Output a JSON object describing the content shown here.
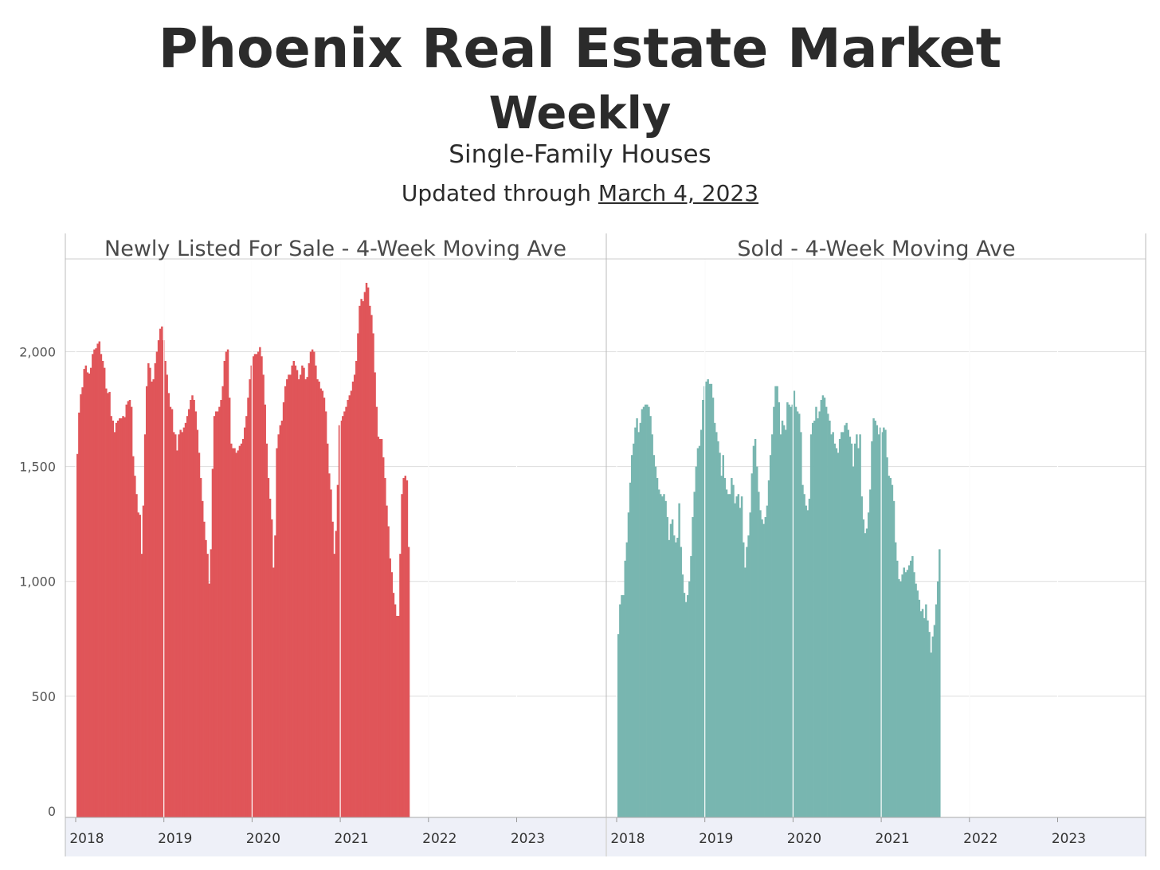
{
  "header": {
    "title": "Phoenix Real Estate Market",
    "subtitle": "Weekly",
    "category": "Single-Family Houses",
    "updated_prefix": "Updated through ",
    "updated_date": "March 4, 2023"
  },
  "colors": {
    "listed": "#e05559",
    "sold": "#78b6b0",
    "grid": "#dddddd",
    "axis_band": "#eef0f8"
  },
  "chart_data": [
    {
      "type": "bar",
      "title": "Newly Listed For Sale - 4-Week Moving Ave",
      "x_start": "2017-12-30",
      "x_step_weeks": 1,
      "xtick_labels": [
        "2018",
        "2019",
        "2020",
        "2021",
        "2022",
        "2023"
      ],
      "ytick_labels": [
        "0",
        "500",
        "1,000",
        "1,500",
        "2,000"
      ],
      "ylim": [
        0,
        2300
      ],
      "grid": true,
      "values": [
        1555,
        1735,
        1815,
        1845,
        1925,
        1940,
        1910,
        1905,
        1930,
        1990,
        2010,
        2015,
        2035,
        2045,
        1990,
        1960,
        1930,
        1840,
        1820,
        1825,
        1720,
        1700,
        1650,
        1690,
        1700,
        1710,
        1710,
        1720,
        1715,
        1770,
        1785,
        1790,
        1760,
        1545,
        1460,
        1380,
        1300,
        1290,
        1120,
        1330,
        1640,
        1850,
        1950,
        1930,
        1870,
        1880,
        1950,
        2000,
        2050,
        2100,
        2110,
        2050,
        1960,
        1900,
        1820,
        1760,
        1750,
        1650,
        1640,
        1570,
        1640,
        1660,
        1650,
        1670,
        1690,
        1720,
        1750,
        1790,
        1810,
        1790,
        1740,
        1660,
        1560,
        1450,
        1350,
        1260,
        1180,
        1120,
        990,
        1140,
        1490,
        1720,
        1740,
        1740,
        1760,
        1790,
        1850,
        1960,
        2000,
        2010,
        1800,
        1600,
        1580,
        1580,
        1560,
        1570,
        1590,
        1600,
        1620,
        1670,
        1720,
        1800,
        1880,
        1940,
        1980,
        1990,
        1990,
        2000,
        2020,
        1980,
        1900,
        1770,
        1600,
        1450,
        1360,
        1270,
        1060,
        1200,
        1580,
        1640,
        1680,
        1700,
        1780,
        1850,
        1880,
        1900,
        1900,
        1940,
        1960,
        1940,
        1920,
        1880,
        1900,
        1940,
        1930,
        1880,
        1890,
        1950,
        2000,
        2010,
        2000,
        1940,
        1880,
        1870,
        1840,
        1830,
        1800,
        1740,
        1600,
        1470,
        1400,
        1260,
        1120,
        1220,
        1420,
        1680,
        1700,
        1720,
        1740,
        1760,
        1790,
        1810,
        1830,
        1870,
        1900,
        1960,
        2080,
        2200,
        2230,
        2220,
        2260,
        2300,
        2280,
        2200,
        2160,
        2080,
        1910,
        1760,
        1630,
        1620,
        1620,
        1540,
        1450,
        1330,
        1240,
        1100,
        1040,
        950,
        900,
        850,
        850,
        1120,
        1380,
        1450,
        1460,
        1440,
        1150
      ]
    },
    {
      "type": "bar",
      "title": "Sold - 4-Week Moving Ave",
      "x_start": "2017-12-30",
      "x_step_weeks": 1,
      "xtick_labels": [
        "2018",
        "2019",
        "2020",
        "2021",
        "2022",
        "2023"
      ],
      "ylim": [
        0,
        2300
      ],
      "grid": true,
      "values": [
        770,
        900,
        940,
        940,
        1090,
        1170,
        1300,
        1430,
        1550,
        1600,
        1670,
        1710,
        1650,
        1690,
        1750,
        1760,
        1770,
        1770,
        1760,
        1720,
        1640,
        1550,
        1500,
        1450,
        1400,
        1380,
        1370,
        1380,
        1350,
        1280,
        1180,
        1250,
        1270,
        1200,
        1170,
        1190,
        1340,
        1150,
        1030,
        950,
        910,
        940,
        1000,
        1110,
        1280,
        1390,
        1500,
        1580,
        1590,
        1660,
        1790,
        1850,
        1870,
        1880,
        1860,
        1860,
        1800,
        1690,
        1650,
        1610,
        1560,
        1460,
        1550,
        1450,
        1400,
        1380,
        1380,
        1450,
        1420,
        1340,
        1370,
        1380,
        1320,
        1370,
        1170,
        1060,
        1150,
        1200,
        1300,
        1470,
        1590,
        1620,
        1500,
        1390,
        1310,
        1270,
        1250,
        1280,
        1330,
        1440,
        1550,
        1640,
        1760,
        1850,
        1850,
        1780,
        1640,
        1700,
        1680,
        1660,
        1780,
        1770,
        1760,
        1770,
        1830,
        1760,
        1740,
        1730,
        1650,
        1420,
        1380,
        1330,
        1310,
        1360,
        1640,
        1690,
        1700,
        1760,
        1710,
        1740,
        1790,
        1810,
        1800,
        1760,
        1730,
        1700,
        1640,
        1650,
        1600,
        1580,
        1560,
        1620,
        1650,
        1650,
        1680,
        1690,
        1660,
        1630,
        1600,
        1500,
        1600,
        1640,
        1580,
        1640,
        1370,
        1270,
        1210,
        1230,
        1300,
        1400,
        1610,
        1710,
        1700,
        1680,
        1640,
        1670,
        1650,
        1670,
        1660,
        1540,
        1460,
        1450,
        1420,
        1350,
        1170,
        1090,
        1010,
        1000,
        1030,
        1060,
        1040,
        1050,
        1070,
        1090,
        1110,
        1040,
        990,
        960,
        920,
        870,
        880,
        840,
        900,
        830,
        780,
        690,
        760,
        810,
        900,
        1000,
        1140
      ]
    }
  ]
}
